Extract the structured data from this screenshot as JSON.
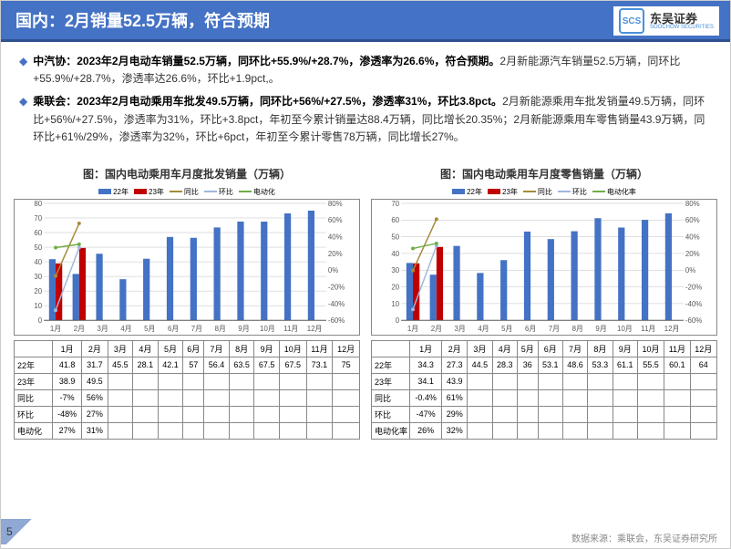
{
  "title": "国内：2月销量52.5万辆，符合预期",
  "logo": {
    "cn": "东吴证券",
    "en": "SOOCHOW SECURITIES",
    "icon": "SCS"
  },
  "bullets": [
    {
      "bold": "中汽协：2023年2月电动车销量52.5万辆，同环比+55.9%/+28.7%，渗透率为26.6%，符合预期。",
      "rest": "2月新能源汽车销量52.5万辆，同环比+55.9%/+28.7%，渗透率达26.6%，环比+1.9pct,。"
    },
    {
      "bold": "乘联会：2023年2月电动乘用车批发49.5万辆，同环比+56%/+27.5%，渗透率31%，环比3.8pct。",
      "rest": "2月新能源乘用车批发销量49.5万辆，同环比+56%/+27.5%，渗透率为31%，环比+3.8pct，年初至今累计销量达88.4万辆，同比增长20.35%；2月新能源乘用车零售销量43.9万辆，同环比+61%/29%，渗透率为32%，环比+6pct，年初至今累计零售78万辆，同比增长27%。"
    }
  ],
  "months": [
    "1月",
    "2月",
    "3月",
    "4月",
    "5月",
    "6月",
    "7月",
    "8月",
    "9月",
    "10月",
    "11月",
    "12月"
  ],
  "legend": {
    "y22": "22年",
    "y23": "23年",
    "yoy": "同比",
    "mom": "环比",
    "rate": "电动化"
  },
  "legend2": {
    "rate": "电动化率"
  },
  "colors": {
    "y22": "#4472c4",
    "y23": "#c00000",
    "yoy": "#a68b3a",
    "mom": "#9fb8dd",
    "rate": "#70ad47",
    "grid": "#bfbfbf",
    "axis": "#595959"
  },
  "chart1": {
    "title": "图：国内电动乘用车月度批发销量（万辆）",
    "ymax": 80,
    "ystep": 10,
    "pctmax": 80,
    "pctmin": -60,
    "pctstep": 20,
    "y22": [
      41.8,
      31.7,
      45.5,
      28.1,
      42.1,
      57.0,
      56.4,
      63.5,
      67.5,
      67.5,
      73.1,
      75.0
    ],
    "y23": [
      38.9,
      49.5,
      null,
      null,
      null,
      null,
      null,
      null,
      null,
      null,
      null,
      null
    ],
    "yoy": [
      "-7%",
      "56%",
      "",
      "",
      "",
      "",
      "",
      "",
      "",
      "",
      "",
      ""
    ],
    "mom": [
      "-48%",
      "27%",
      "",
      "",
      "",
      "",
      "",
      "",
      "",
      "",
      "",
      ""
    ],
    "rate": [
      "27%",
      "31%",
      "",
      "",
      "",
      "",
      "",
      "",
      "",
      "",
      "",
      ""
    ],
    "yoy_v": [
      -7,
      56
    ],
    "mom_v": [
      -48,
      27
    ],
    "rate_v": [
      27,
      31
    ]
  },
  "chart2": {
    "title": "图：国内电动乘用车月度零售销量（万辆）",
    "ymax": 70,
    "ystep": 10,
    "pctmax": 80,
    "pctmin": -60,
    "pctstep": 20,
    "y22": [
      34.3,
      27.3,
      44.5,
      28.3,
      36.0,
      53.1,
      48.6,
      53.3,
      61.1,
      55.5,
      60.1,
      64.0
    ],
    "y23": [
      34.1,
      43.9,
      null,
      null,
      null,
      null,
      null,
      null,
      null,
      null,
      null,
      null
    ],
    "yoy": [
      "-0.4%",
      "61%",
      "",
      "",
      "",
      "",
      "",
      "",
      "",
      "",
      "",
      ""
    ],
    "mom": [
      "-47%",
      "29%",
      "",
      "",
      "",
      "",
      "",
      "",
      "",
      "",
      "",
      ""
    ],
    "rate": [
      "26%",
      "32%",
      "",
      "",
      "",
      "",
      "",
      "",
      "",
      "",
      "",
      ""
    ],
    "yoy_v": [
      -0.4,
      61
    ],
    "mom_v": [
      -47,
      29
    ],
    "rate_v": [
      26,
      32
    ]
  },
  "rows": [
    "22年",
    "23年",
    "同比",
    "环比",
    "电动化"
  ],
  "rows2": [
    "22年",
    "23年",
    "同比",
    "环比",
    "电动化率"
  ],
  "pageNum": "5",
  "source": "数据来源：乘联会，东吴证券研究所"
}
